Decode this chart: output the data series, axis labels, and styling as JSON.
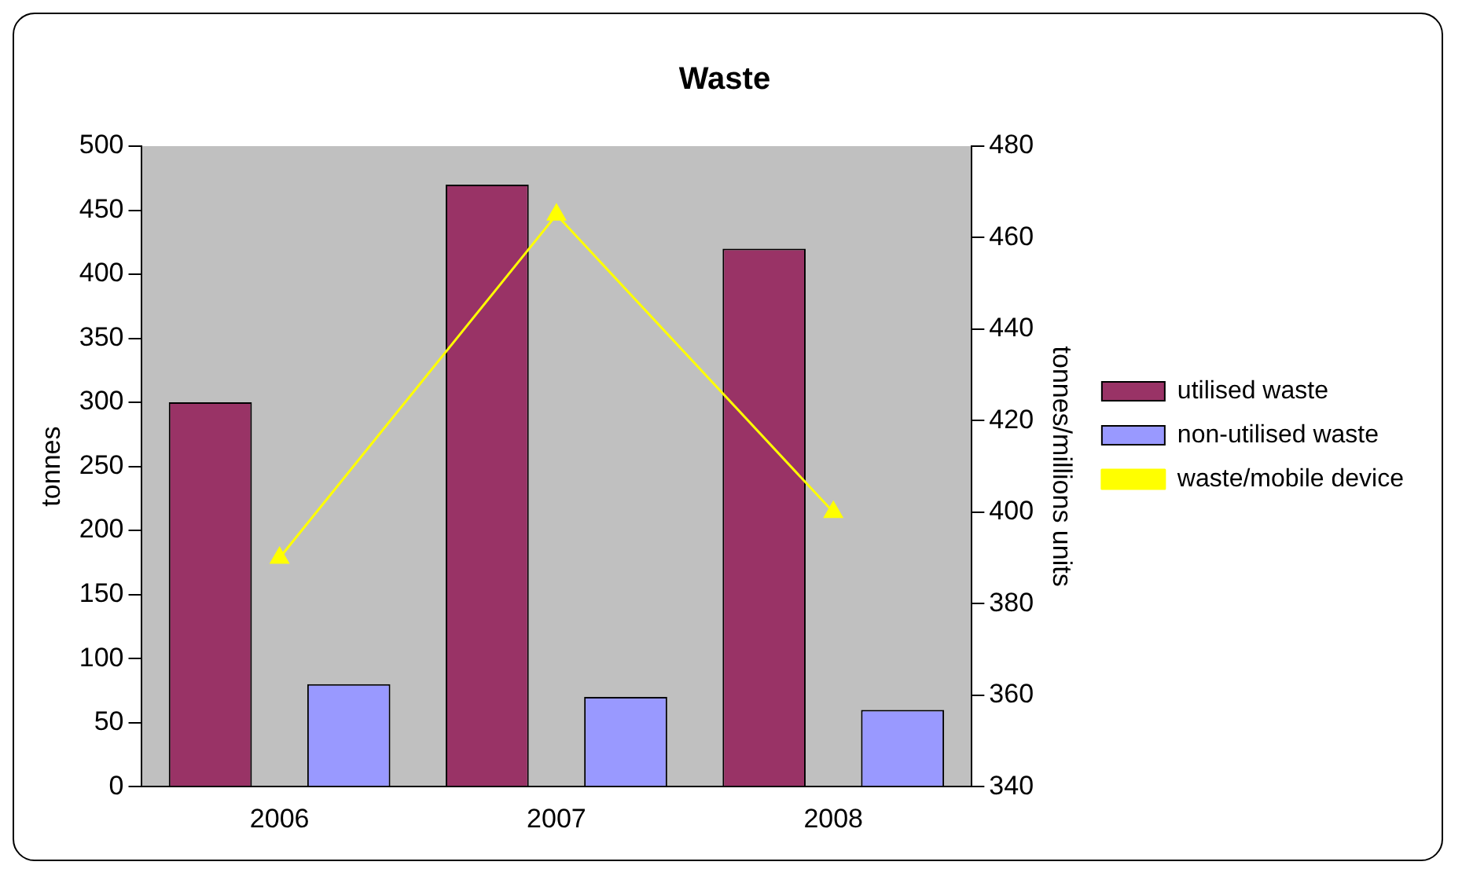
{
  "chart_data": {
    "type": "bar",
    "title": "Waste",
    "ylabel": "tonnes",
    "y2label": "tonnes/millions units",
    "categories": [
      "2006",
      "2007",
      "2008"
    ],
    "series": [
      {
        "name": "utilised waste",
        "color": "#993366",
        "values": [
          300,
          470,
          420
        ]
      },
      {
        "name": "non-utilised waste",
        "color": "#9999ff",
        "values": [
          80,
          70,
          60
        ]
      },
      {
        "name": "waste/mobile device",
        "type": "line",
        "axis": "y2",
        "color": "#ffff00",
        "marker": "triangle",
        "values": [
          390,
          465,
          400
        ]
      }
    ],
    "ylim": [
      0,
      500
    ],
    "yticks": [
      0,
      50,
      100,
      150,
      200,
      250,
      300,
      350,
      400,
      450,
      500
    ],
    "y2lim": [
      340,
      480
    ],
    "y2ticks": [
      340,
      360,
      380,
      400,
      420,
      440,
      460,
      480
    ],
    "grid": false,
    "legend": "right"
  }
}
